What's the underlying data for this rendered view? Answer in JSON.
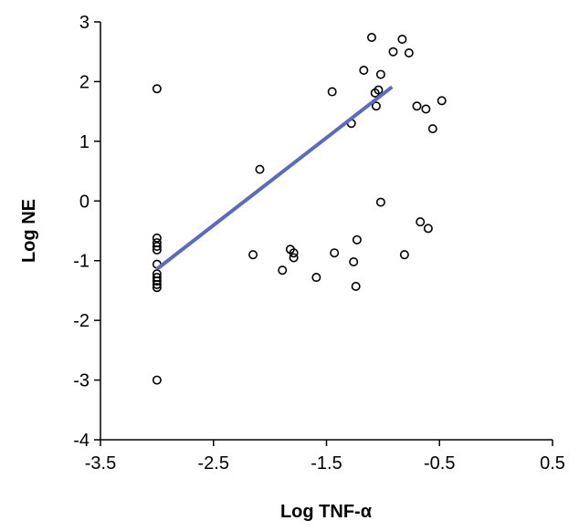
{
  "chart_data": {
    "type": "scatter",
    "title": "",
    "xlabel": "Log TNF-α",
    "ylabel": "Log NE",
    "xlim": [
      -3.5,
      0.5
    ],
    "ylim": [
      -4,
      3
    ],
    "xticks": [
      "-3.5",
      "-2.5",
      "-1.5",
      "-0.5",
      "0.5"
    ],
    "yticks": [
      "-4",
      "-3",
      "-2",
      "-1",
      "0",
      "1",
      "2",
      "3"
    ],
    "grid": false,
    "legend": "none",
    "marker": "open-circle",
    "marker_color": "#000000",
    "trend_color": "#5b6bc0",
    "points": [
      {
        "x": -3.0,
        "y": 1.88
      },
      {
        "x": -3.0,
        "y": -0.62
      },
      {
        "x": -3.0,
        "y": -0.7
      },
      {
        "x": -3.0,
        "y": -0.76
      },
      {
        "x": -3.0,
        "y": -0.82
      },
      {
        "x": -3.0,
        "y": -1.06
      },
      {
        "x": -3.0,
        "y": -1.22
      },
      {
        "x": -3.0,
        "y": -1.28
      },
      {
        "x": -3.0,
        "y": -1.34
      },
      {
        "x": -3.0,
        "y": -1.4
      },
      {
        "x": -3.0,
        "y": -1.45
      },
      {
        "x": -3.0,
        "y": -3.0
      },
      {
        "x": -2.15,
        "y": -0.9
      },
      {
        "x": -2.09,
        "y": 0.53
      },
      {
        "x": -1.89,
        "y": -1.16
      },
      {
        "x": -1.82,
        "y": -0.81
      },
      {
        "x": -1.79,
        "y": -0.95
      },
      {
        "x": -1.79,
        "y": -0.87
      },
      {
        "x": -1.59,
        "y": -1.28
      },
      {
        "x": -1.45,
        "y": 1.83
      },
      {
        "x": -1.43,
        "y": -0.87
      },
      {
        "x": -1.28,
        "y": 1.3
      },
      {
        "x": -1.26,
        "y": -1.02
      },
      {
        "x": -1.24,
        "y": -1.43
      },
      {
        "x": -1.23,
        "y": -0.65
      },
      {
        "x": -1.17,
        "y": 2.19
      },
      {
        "x": -1.1,
        "y": 2.74
      },
      {
        "x": -1.07,
        "y": 1.81
      },
      {
        "x": -1.06,
        "y": 1.59
      },
      {
        "x": -1.04,
        "y": 1.86
      },
      {
        "x": -1.02,
        "y": 2.12
      },
      {
        "x": -1.02,
        "y": -0.02
      },
      {
        "x": -0.83,
        "y": 2.71
      },
      {
        "x": -0.81,
        "y": -0.9
      },
      {
        "x": -0.77,
        "y": 2.48
      },
      {
        "x": -0.7,
        "y": 1.59
      },
      {
        "x": -0.67,
        "y": -0.35
      },
      {
        "x": -0.62,
        "y": 1.54
      },
      {
        "x": -0.6,
        "y": -0.46
      },
      {
        "x": -0.56,
        "y": 1.21
      },
      {
        "x": -0.48,
        "y": 1.68
      },
      {
        "x": -0.91,
        "y": 2.5
      }
    ],
    "trendline": {
      "x": [
        -3.0,
        -0.92
      ],
      "y": [
        -1.14,
        1.91
      ]
    }
  }
}
